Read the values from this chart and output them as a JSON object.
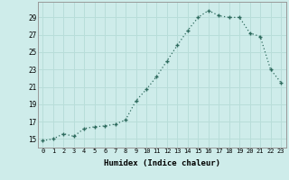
{
  "x": [
    0,
    1,
    2,
    3,
    4,
    5,
    6,
    7,
    8,
    9,
    10,
    11,
    12,
    13,
    14,
    15,
    16,
    17,
    18,
    19,
    20,
    21,
    22,
    23
  ],
  "y": [
    14.8,
    15.0,
    15.6,
    15.3,
    16.2,
    16.4,
    16.5,
    16.7,
    17.2,
    19.4,
    20.7,
    22.2,
    24.0,
    25.8,
    27.5,
    29.0,
    29.8,
    29.2,
    29.0,
    29.0,
    27.2,
    26.8,
    23.0,
    21.5
  ],
  "line_color": "#2e6b5e",
  "bg_color": "#ceecea",
  "grid_color": "#b8ddd9",
  "xlabel": "Humidex (Indice chaleur)",
  "ylabel_ticks": [
    15,
    17,
    19,
    21,
    23,
    25,
    27,
    29
  ],
  "xtick_labels": [
    "0",
    "1",
    "2",
    "3",
    "4",
    "5",
    "6",
    "7",
    "8",
    "9",
    "10",
    "11",
    "12",
    "13",
    "14",
    "15",
    "16",
    "17",
    "18",
    "19",
    "20",
    "21",
    "22",
    "23"
  ],
  "xlim": [
    -0.5,
    23.5
  ],
  "ylim": [
    14.0,
    30.8
  ]
}
